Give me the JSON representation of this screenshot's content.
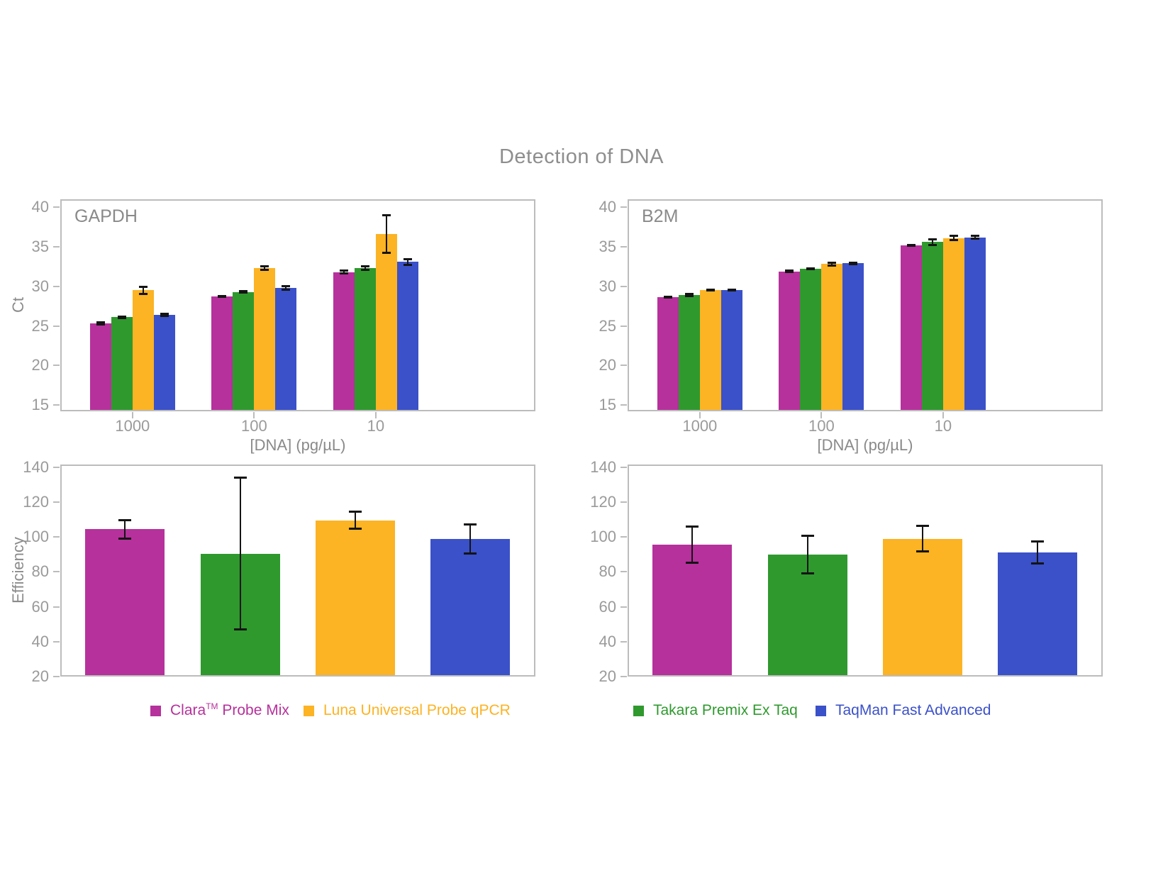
{
  "title": "Detection of DNA",
  "colors": {
    "clara": "#B6319C",
    "luna": "#FCB324",
    "takara": "#2F992E",
    "taqman": "#3B51C9",
    "axis_gray": "#bcbcbc",
    "text_gray": "#8a8a8a",
    "error_bar": "#141414"
  },
  "legend": {
    "items": [
      {
        "prefix": "Clara",
        "sup": "TM",
        "suffix": " Probe Mix",
        "color": "#B6319C",
        "swatch": "clara-swatch"
      },
      {
        "prefix": "Luna Universal Probe qPCR",
        "sup": "",
        "suffix": "",
        "color": "#FCB324",
        "swatch": "luna-swatch"
      },
      {
        "prefix": "Takara Premix Ex Taq",
        "sup": "",
        "suffix": "",
        "color": "#2F992E",
        "swatch": "takara-swatch"
      },
      {
        "prefix": "TaqMan Fast Advanced",
        "sup": "",
        "suffix": "",
        "color": "#3B51C9",
        "swatch": "taqman-swatch"
      }
    ]
  },
  "chart_data": [
    {
      "id": "gapdh_ct",
      "type": "bar",
      "panel_label": "GAPDH",
      "ylabel": "Ct",
      "xlabel": "[DNA] (pg/µL)",
      "ylim": [
        15,
        40
      ],
      "yticks": [
        40,
        35,
        30,
        25,
        20,
        15
      ],
      "categories": [
        "1000",
        "100",
        "10"
      ],
      "legend_position": "none",
      "grid": false,
      "series": [
        {
          "name": "Clara™ Probe Mix",
          "color": "#B6319C",
          "values": [
            25.3,
            28.7,
            31.8
          ],
          "errors": [
            0.2,
            0.1,
            0.25
          ]
        },
        {
          "name": "Takara Premix Ex Taq",
          "color": "#2F992E",
          "values": [
            26.1,
            29.3,
            32.3
          ],
          "errors": [
            0.15,
            0.1,
            0.25
          ]
        },
        {
          "name": "Luna Universal Probe qPCR",
          "color": "#FCB324",
          "values": [
            29.5,
            32.3,
            36.6
          ],
          "errors": [
            0.5,
            0.3,
            2.4
          ]
        },
        {
          "name": "TaqMan Fast Advanced",
          "color": "#3B51C9",
          "values": [
            26.4,
            29.8,
            33.1
          ],
          "errors": [
            0.15,
            0.25,
            0.4
          ]
        }
      ]
    },
    {
      "id": "b2m_ct",
      "type": "bar",
      "panel_label": "B2M",
      "ylabel": "",
      "xlabel": "[DNA] (pg/µL)",
      "ylim": [
        15,
        40
      ],
      "yticks": [
        40,
        35,
        30,
        25,
        20,
        15
      ],
      "categories": [
        "1000",
        "100",
        "10"
      ],
      "legend_position": "none",
      "grid": false,
      "series": [
        {
          "name": "Clara™ Probe Mix",
          "color": "#B6319C",
          "values": [
            28.6,
            31.9,
            35.2
          ],
          "errors": [
            0.1,
            0.15,
            0.1
          ]
        },
        {
          "name": "Takara Premix Ex Taq",
          "color": "#2F992E",
          "values": [
            28.9,
            32.2,
            35.6
          ],
          "errors": [
            0.15,
            0.1,
            0.4
          ]
        },
        {
          "name": "Luna Universal Probe qPCR",
          "color": "#FCB324",
          "values": [
            29.5,
            32.8,
            36.1
          ],
          "errors": [
            0.1,
            0.2,
            0.3
          ]
        },
        {
          "name": "TaqMan Fast Advanced",
          "color": "#3B51C9",
          "values": [
            29.5,
            32.9,
            36.2
          ],
          "errors": [
            0.08,
            0.15,
            0.25
          ]
        }
      ]
    },
    {
      "id": "gapdh_eff",
      "type": "bar",
      "panel_label": "",
      "ylabel": "Efficiency",
      "xlabel": "",
      "ylim": [
        20,
        140
      ],
      "yticks": [
        140,
        120,
        100,
        80,
        60,
        40,
        20
      ],
      "categories": [],
      "legend_position": "none",
      "grid": false,
      "series": [
        {
          "name": "Clara™ Probe Mix",
          "color": "#B6319C",
          "values": [
            104.5
          ],
          "errors": [
            5.5
          ]
        },
        {
          "name": "Takara Premix Ex Taq",
          "color": "#2F992E",
          "values": [
            90.5
          ],
          "errors": [
            43.5
          ]
        },
        {
          "name": "Luna Universal Probe qPCR",
          "color": "#FCB324",
          "values": [
            109.5
          ],
          "errors": [
            5
          ]
        },
        {
          "name": "TaqMan Fast Advanced",
          "color": "#3B51C9",
          "values": [
            99
          ],
          "errors": [
            8.5
          ]
        }
      ]
    },
    {
      "id": "b2m_eff",
      "type": "bar",
      "panel_label": "",
      "ylabel": "",
      "xlabel": "",
      "ylim": [
        20,
        140
      ],
      "yticks": [
        140,
        120,
        100,
        80,
        60,
        40,
        20
      ],
      "categories": [],
      "legend_position": "none",
      "grid": false,
      "series": [
        {
          "name": "Clara™ Probe Mix",
          "color": "#B6319C",
          "values": [
            95.5
          ],
          "errors": [
            10.5
          ]
        },
        {
          "name": "Takara Premix Ex Taq",
          "color": "#2F992E",
          "values": [
            90
          ],
          "errors": [
            11
          ]
        },
        {
          "name": "Luna Universal Probe qPCR",
          "color": "#FCB324",
          "values": [
            99
          ],
          "errors": [
            7.5
          ]
        },
        {
          "name": "TaqMan Fast Advanced",
          "color": "#3B51C9",
          "values": [
            91
          ],
          "errors": [
            6.5
          ]
        }
      ]
    }
  ]
}
